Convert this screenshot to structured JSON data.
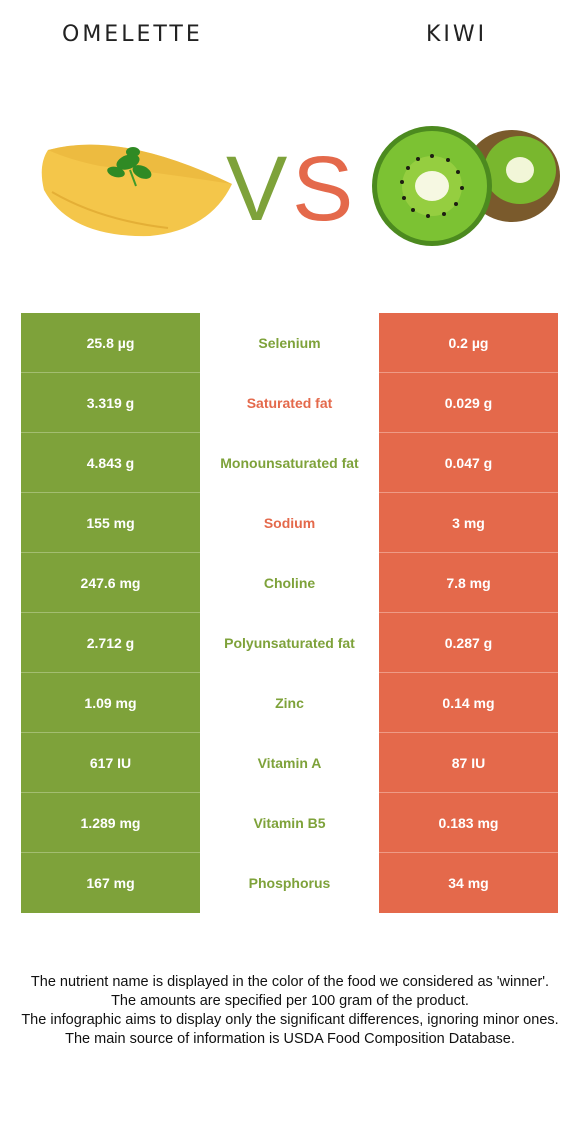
{
  "header": {
    "left_food": "OMELETTE",
    "right_food": "KIWI",
    "vs_letters": [
      "V",
      "S"
    ]
  },
  "colors": {
    "left_winner": "#7ea23a",
    "right_winner": "#e4694b"
  },
  "rows": [
    {
      "left": "25.8 µg",
      "nutrient": "Selenium",
      "right": "0.2 µg",
      "winner": "left"
    },
    {
      "left": "3.319 g",
      "nutrient": "Saturated fat",
      "right": "0.029 g",
      "winner": "right"
    },
    {
      "left": "4.843 g",
      "nutrient": "Monounsaturated fat",
      "right": "0.047 g",
      "winner": "left"
    },
    {
      "left": "155 mg",
      "nutrient": "Sodium",
      "right": "3 mg",
      "winner": "right"
    },
    {
      "left": "247.6 mg",
      "nutrient": "Choline",
      "right": "7.8 mg",
      "winner": "left"
    },
    {
      "left": "2.712 g",
      "nutrient": "Polyunsaturated fat",
      "right": "0.287 g",
      "winner": "left"
    },
    {
      "left": "1.09 mg",
      "nutrient": "Zinc",
      "right": "0.14 mg",
      "winner": "left"
    },
    {
      "left": "617 IU",
      "nutrient": "Vitamin A",
      "right": "87 IU",
      "winner": "left"
    },
    {
      "left": "1.289 mg",
      "nutrient": "Vitamin B5",
      "right": "0.183 mg",
      "winner": "left"
    },
    {
      "left": "167 mg",
      "nutrient": "Phosphorus",
      "right": "34 mg",
      "winner": "left"
    }
  ],
  "notes": [
    "The nutrient name is displayed in the color of the food we considered as 'winner'.",
    "The amounts are specified per 100 gram of the product.",
    "The infographic aims to display only the significant differences, ignoring minor ones.",
    "The main source of information is USDA Food Composition Database."
  ]
}
